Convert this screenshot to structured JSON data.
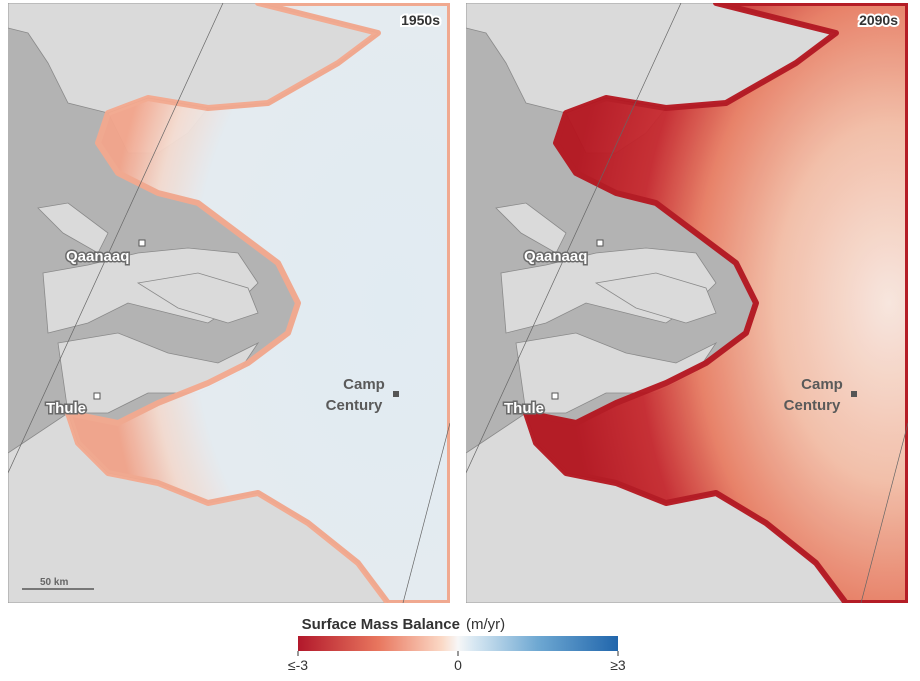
{
  "panels": [
    {
      "period": "1950s",
      "places": {
        "qaanaaq": "Qaanaaq",
        "thule": "Thule",
        "camp": [
          "Camp",
          "Century"
        ]
      },
      "scale_bar": "50 km"
    },
    {
      "period": "2090s",
      "places": {
        "qaanaaq": "Qaanaaq",
        "thule": "Thule",
        "camp": [
          "Camp",
          "Century"
        ]
      }
    }
  ],
  "legend": {
    "title": "Surface Mass Balance",
    "unit": "(m/yr)",
    "ticks": [
      "≤-3",
      "0",
      "≥3"
    ]
  }
}
